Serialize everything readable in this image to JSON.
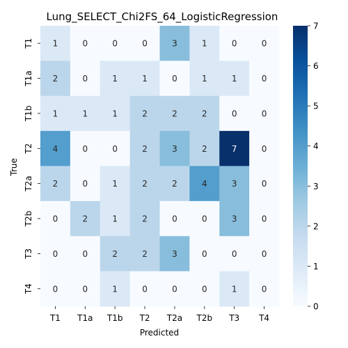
{
  "chart_data": {
    "type": "heatmap",
    "title": "Lung_SELECT_Chi2FS_64_LogisticRegression",
    "xlabel": "Predicted",
    "ylabel": "True",
    "x_categories": [
      "T1",
      "T1a",
      "T1b",
      "T2",
      "T2a",
      "T2b",
      "T3",
      "T4"
    ],
    "y_categories": [
      "T1",
      "T1a",
      "T1b",
      "T2",
      "T2a",
      "T2b",
      "T3",
      "T4"
    ],
    "values": [
      [
        1,
        0,
        0,
        0,
        3,
        1,
        0,
        0
      ],
      [
        2,
        0,
        1,
        1,
        0,
        1,
        1,
        0
      ],
      [
        1,
        1,
        1,
        2,
        2,
        2,
        0,
        0
      ],
      [
        4,
        0,
        0,
        2,
        3,
        2,
        7,
        0
      ],
      [
        2,
        0,
        1,
        2,
        2,
        4,
        3,
        0
      ],
      [
        0,
        2,
        1,
        2,
        0,
        0,
        3,
        0
      ],
      [
        0,
        0,
        2,
        2,
        3,
        0,
        0,
        0
      ],
      [
        0,
        0,
        1,
        0,
        0,
        0,
        1,
        0
      ]
    ],
    "colorbar": {
      "min": 0,
      "max": 7,
      "ticks": [
        0,
        1,
        2,
        3,
        4,
        5,
        6,
        7
      ]
    },
    "colormap": "Blues"
  }
}
